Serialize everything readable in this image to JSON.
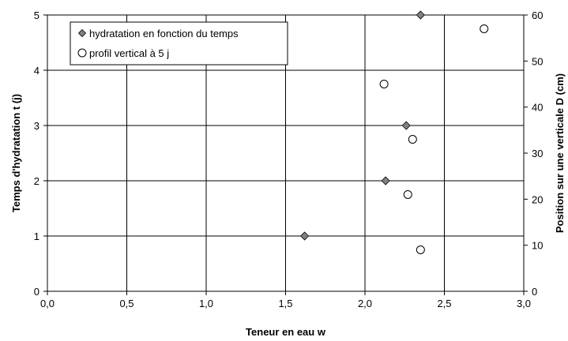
{
  "chart_data": {
    "type": "scatter",
    "xlabel": "Teneur en eau w",
    "ylabel": "Temps d'hydratation t (j)",
    "y2label": "Position sur une verticale D (cm)",
    "xlim": [
      0,
      3
    ],
    "ylim": [
      0,
      5
    ],
    "y2lim": [
      0,
      60
    ],
    "x_ticks": [
      "0,0",
      "0,5",
      "1,0",
      "1,5",
      "2,0",
      "2,5",
      "3,0"
    ],
    "y_ticks": [
      "0",
      "1",
      "2",
      "3",
      "4",
      "5"
    ],
    "y2_ticks": [
      "0",
      "10",
      "20",
      "30",
      "40",
      "50",
      "60"
    ],
    "grid": true,
    "legend_position": "top-left",
    "series": [
      {
        "name": "hydratation en fonction du temps",
        "axis": "left",
        "marker": "diamond",
        "color": "#808080",
        "points": [
          {
            "x": 1.62,
            "y": 1
          },
          {
            "x": 2.13,
            "y": 2
          },
          {
            "x": 2.26,
            "y": 3
          },
          {
            "x": 2.35,
            "y": 5
          }
        ]
      },
      {
        "name": "profil vertical à 5 j",
        "axis": "right",
        "marker": "circle",
        "color": "#ffffff",
        "points": [
          {
            "x": 2.35,
            "y": 9
          },
          {
            "x": 2.27,
            "y": 21
          },
          {
            "x": 2.3,
            "y": 33
          },
          {
            "x": 2.12,
            "y": 45
          },
          {
            "x": 2.75,
            "y": 57
          }
        ]
      }
    ]
  }
}
